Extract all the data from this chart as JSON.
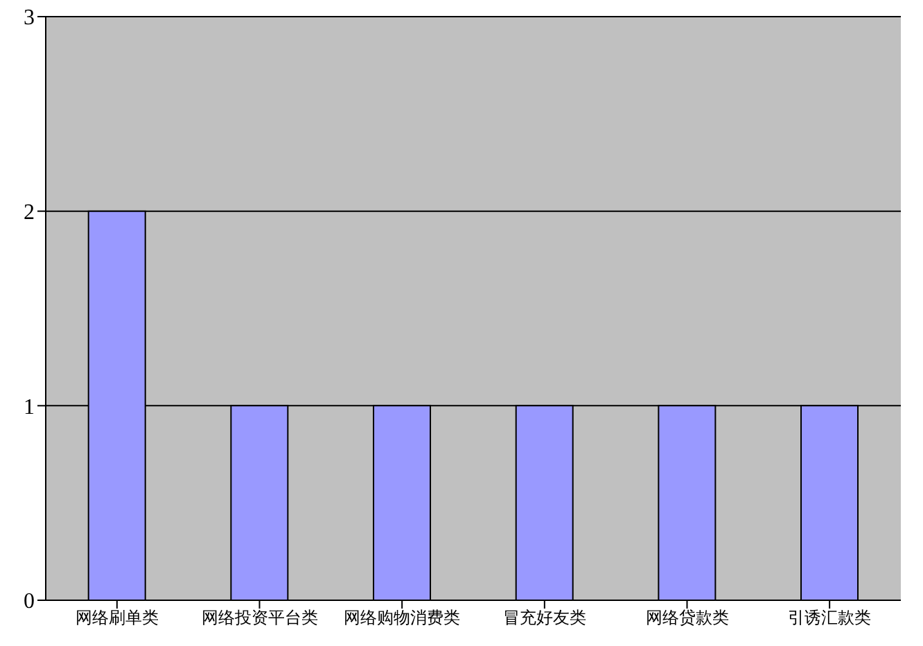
{
  "chart_data": {
    "type": "bar",
    "categories": [
      "网络刷单类",
      "网络投资平台类",
      "网络购物消费类",
      "冒充好友类",
      "网络贷款类",
      "引诱汇款类"
    ],
    "values": [
      2,
      1,
      1,
      1,
      1,
      1
    ],
    "color": "#9999ff",
    "ylim": [
      0,
      3
    ],
    "yticks": [
      0,
      1,
      2,
      3
    ],
    "grid": "y",
    "legend": false
  }
}
